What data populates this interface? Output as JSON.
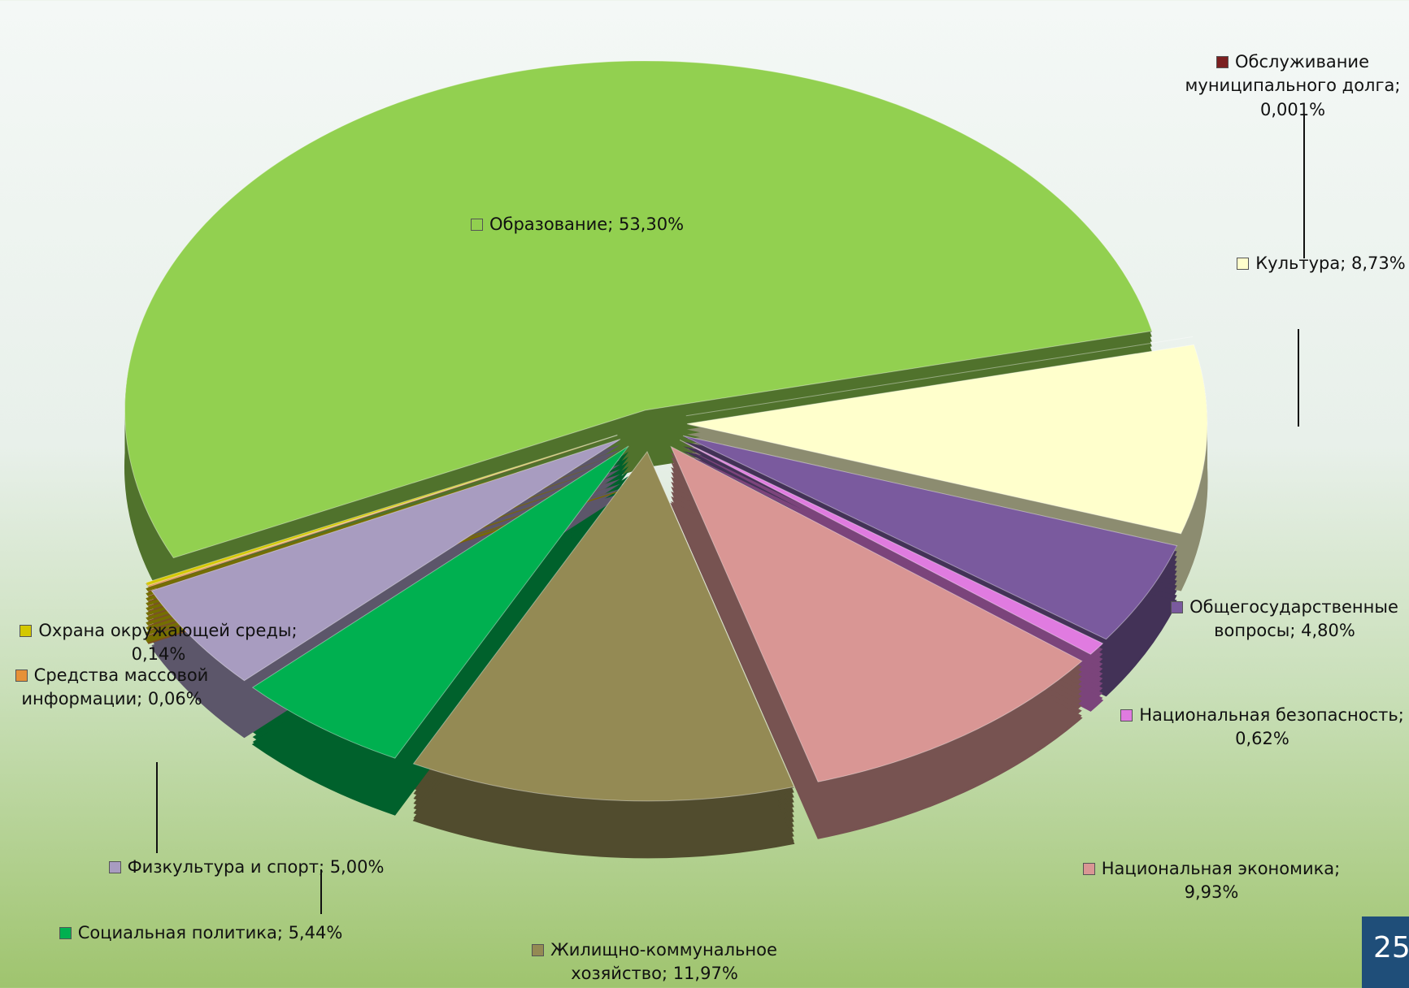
{
  "chart_data": {
    "type": "pie",
    "values": [
      53.3,
      0.001,
      8.73,
      4.8,
      0.62,
      9.93,
      11.97,
      5.44,
      5.0,
      0.06,
      0.14
    ],
    "value_labels": [
      "Образование; 53,30%",
      "Обслуживание муниципального долга; 0,001%",
      "Культура; 8,73%",
      "Общегосударственные вопросы; 4,80%",
      "Национальная безопасность; 0,62%",
      "Национальная экономика; 9,93%",
      "Жилищно-коммунальное хозяйство; 11,97%",
      "Социальная политика; 5,44%",
      "Физкультура и спорт; 5,00%",
      "Средства массовой информации; 0,06%",
      "Охрана окружающей среды; 0,14%"
    ],
    "colors": [
      "#92d050",
      "#7b2020",
      "#ffffcc",
      "#7a5a9e",
      "#e07be0",
      "#d99694",
      "#948a54",
      "#00b050",
      "#a89cc0",
      "#e69138",
      "#d4c800"
    ]
  },
  "page_number": "25"
}
